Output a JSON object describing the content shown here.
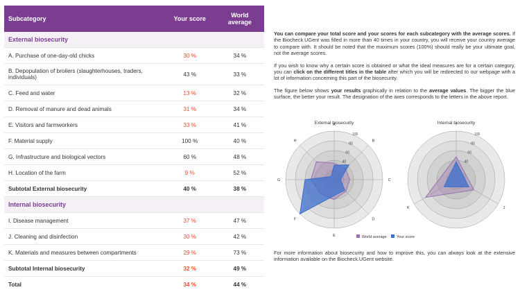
{
  "table": {
    "headers": {
      "subcategory": "Subcategory",
      "your_score": "Your score",
      "world_average": "World average"
    },
    "external": {
      "title": "External biosecurity",
      "rows": [
        {
          "label": "A. Purchase of one-day-old chicks",
          "score": "30 %",
          "avg": "34 %",
          "red": true
        },
        {
          "label": "B. Depopulation of broilers (slaughterhouses, traders, individuals)",
          "score": "43 %",
          "avg": "33 %",
          "red": false
        },
        {
          "label": "C. Feed and water",
          "score": "13 %",
          "avg": "32 %",
          "red": true
        },
        {
          "label": "D. Removal of manure and dead animals",
          "score": "31 %",
          "avg": "34 %",
          "red": true
        },
        {
          "label": "E. Visitors and farmworkers",
          "score": "33 %",
          "avg": "41 %",
          "red": true
        },
        {
          "label": "F. Material supply",
          "score": "100 %",
          "avg": "40 %",
          "red": false
        },
        {
          "label": "G. Infrastructure and biological vectors",
          "score": "60 %",
          "avg": "48 %",
          "red": false
        },
        {
          "label": "H. Location of the farm",
          "score": "9 %",
          "avg": "52 %",
          "red": true
        }
      ],
      "subtotal": {
        "label": "Subtotal External biosecurity",
        "score": "40 %",
        "avg": "38 %"
      }
    },
    "internal": {
      "title": "Internal biosecurity",
      "rows": [
        {
          "label": "I. Disease management",
          "score": "37 %",
          "avg": "47 %",
          "red": true
        },
        {
          "label": "J. Cleaning and disinfection",
          "score": "30 %",
          "avg": "42 %",
          "red": true
        },
        {
          "label": "K. Materials and measures between compartments",
          "score": "29 %",
          "avg": "73 %",
          "red": true
        }
      ],
      "subtotal": {
        "label": "Subtotal Internal biosecurity",
        "score": "32 %",
        "avg": "49 %"
      }
    },
    "total": {
      "label": "Total",
      "score": "34 %",
      "avg": "44 %"
    }
  },
  "text": {
    "p1_bold": "You can compare your total score and your scores for each subcategory with the average scores.",
    "p1_rest": " If the Biocheck.UGent was filled in more than 40 times in your country, you will receive your country average to compare with. It should be noted that the maximum scores (100%) should really be your ultimate goal, not the average scores.",
    "p2_a": "If you wish to know why a certain score is obtained or what the ideal measures are for a certain category, you can ",
    "p2_bold": "click on the different titles in the table",
    "p2_b": " after which you will be redirected to our webpage with a lot of information concerning this part of the biosecurity.",
    "p3_a": "The figure below shows ",
    "p3_bold1": "your results",
    "p3_b": " graphically in relation to the ",
    "p3_bold2": "average values",
    "p3_c": ". The bigger the blue surface, the better your result. The designation of the axes corresponds to the letters in the above report.",
    "footer": "For more information about biosecurity and how to improve this, you can always look at the extensive information available on the Biocheck.UGent website."
  },
  "chart_data": [
    {
      "type": "radar",
      "title": "External biosecurity",
      "axes": [
        "A",
        "B",
        "C",
        "D",
        "E",
        "F",
        "G",
        "H"
      ],
      "series": [
        {
          "name": "World average",
          "values": [
            34,
            33,
            32,
            34,
            41,
            40,
            48,
            52
          ],
          "color": "#9b6fb0"
        },
        {
          "name": "Your score",
          "values": [
            30,
            43,
            13,
            31,
            33,
            100,
            60,
            9
          ],
          "color": "#3d6fcc"
        }
      ],
      "rlim": [
        0,
        100
      ],
      "ticks": [
        "40",
        "60",
        "80",
        "100"
      ]
    },
    {
      "type": "radar",
      "title": "Internal biosecurity",
      "axes": [
        "I",
        "J",
        "K"
      ],
      "series": [
        {
          "name": "World average",
          "values": [
            47,
            42,
            73
          ],
          "color": "#9b6fb0"
        },
        {
          "name": "Your score",
          "values": [
            37,
            30,
            29
          ],
          "color": "#3d6fcc"
        }
      ],
      "rlim": [
        0,
        100
      ],
      "ticks": [
        "40",
        "60",
        "80",
        "100"
      ]
    }
  ],
  "legend": {
    "world": "World average",
    "yours": "Your score",
    "world_color": "#9b6fb0",
    "yours_color": "#3d6fcc"
  }
}
